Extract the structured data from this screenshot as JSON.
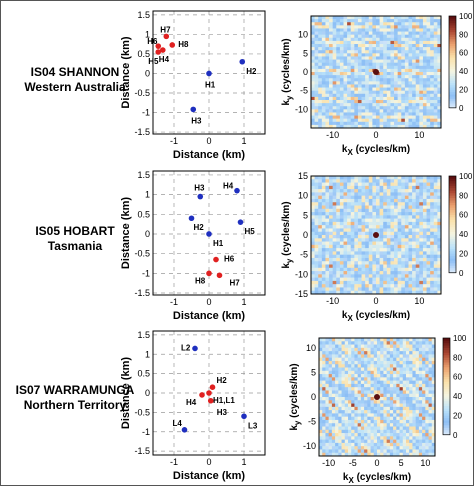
{
  "figure": {
    "stations": [
      {
        "name": "IS04 SHANNON",
        "region": "Western Australia"
      },
      {
        "name": "IS05 HOBART",
        "region": "Tasmania"
      },
      {
        "name": "IS07 WARRAMUNGA",
        "region": "Northern Territory"
      }
    ]
  },
  "chart_data": [
    {
      "type": "scatter",
      "panel": "IS04 SHANNON array layout",
      "xlabel": "Distance (km)",
      "ylabel": "Distance (km)",
      "xlim": [
        -1.6,
        1.6
      ],
      "ylim": [
        -1.55,
        1.6
      ],
      "xticks": [
        -1,
        0,
        1
      ],
      "yticks": [
        -1.5,
        -1,
        -0.5,
        0,
        0.5,
        1,
        1.5
      ],
      "grid": "dashed",
      "points": [
        {
          "label": "H1",
          "x": 0.0,
          "y": 0.0,
          "color": "#1f2fbf"
        },
        {
          "label": "H2",
          "x": 0.95,
          "y": 0.3,
          "color": "#1f2fbf"
        },
        {
          "label": "H3",
          "x": -0.45,
          "y": -0.92,
          "color": "#1f2fbf"
        },
        {
          "label": "H4",
          "x": -1.32,
          "y": 0.6,
          "color": "#e02020"
        },
        {
          "label": "H5",
          "x": -1.45,
          "y": 0.55,
          "color": "#e02020"
        },
        {
          "label": "H6",
          "x": -1.45,
          "y": 0.7,
          "color": "#e02020"
        },
        {
          "label": "H7",
          "x": -1.22,
          "y": 0.95,
          "color": "#e02020"
        },
        {
          "label": "H8",
          "x": -1.05,
          "y": 0.73,
          "color": "#e02020"
        }
      ]
    },
    {
      "type": "heatmap",
      "panel": "IS04 SHANNON array response",
      "xlabel": "kX (cycles/km)",
      "ylabel": "ky (cycles/km)",
      "xlim": [
        -15,
        15
      ],
      "ylim": [
        -15,
        15
      ],
      "xticks": [
        -10,
        0,
        10
      ],
      "yticks": [
        -10,
        -5,
        0,
        5,
        10
      ],
      "colorbar": [
        0,
        100
      ],
      "colorbar_ticks": [
        0,
        20,
        40,
        60,
        80,
        100
      ],
      "peak": {
        "x": 0,
        "y": 0,
        "value": 100
      }
    },
    {
      "type": "scatter",
      "panel": "IS05 HOBART array layout",
      "xlabel": "Distance (km)",
      "ylabel": "Distance (km)",
      "xlim": [
        -1.6,
        1.6
      ],
      "ylim": [
        -1.55,
        1.6
      ],
      "xticks": [
        -1,
        0,
        1
      ],
      "yticks": [
        -1.5,
        -1,
        -0.5,
        0,
        0.5,
        1,
        1.5
      ],
      "grid": "dashed",
      "points": [
        {
          "label": "H1",
          "x": 0.0,
          "y": 0.0,
          "color": "#1f2fbf"
        },
        {
          "label": "H2",
          "x": -0.5,
          "y": 0.4,
          "color": "#1f2fbf"
        },
        {
          "label": "H3",
          "x": -0.25,
          "y": 0.95,
          "color": "#1f2fbf"
        },
        {
          "label": "H4",
          "x": 0.8,
          "y": 1.1,
          "color": "#1f2fbf"
        },
        {
          "label": "H5",
          "x": 0.9,
          "y": 0.3,
          "color": "#1f2fbf"
        },
        {
          "label": "H6",
          "x": 0.2,
          "y": -0.65,
          "color": "#e02020"
        },
        {
          "label": "H7",
          "x": 0.3,
          "y": -1.05,
          "color": "#e02020"
        },
        {
          "label": "H8",
          "x": 0.0,
          "y": -1.0,
          "color": "#e02020"
        }
      ]
    },
    {
      "type": "heatmap",
      "panel": "IS05 HOBART array response",
      "xlabel": "kX (cycles/km)",
      "ylabel": "ky (cycles/km)",
      "xlim": [
        -15,
        15
      ],
      "ylim": [
        -15,
        15
      ],
      "xticks": [
        -10,
        0,
        10
      ],
      "yticks": [
        -15,
        -10,
        -5,
        0,
        5,
        10,
        15
      ],
      "colorbar": [
        0,
        100
      ],
      "colorbar_ticks": [
        0,
        20,
        40,
        60,
        80,
        100
      ],
      "peak": {
        "x": 0,
        "y": 0,
        "value": 100
      }
    },
    {
      "type": "scatter",
      "panel": "IS07 WARRAMUNGA array layout",
      "xlabel": "Distance (km)",
      "ylabel": "Distance (km)",
      "xlim": [
        -1.6,
        1.6
      ],
      "ylim": [
        -1.6,
        1.6
      ],
      "xticks": [
        -1,
        0,
        1
      ],
      "yticks": [
        -1.5,
        -1,
        -0.5,
        0,
        0.5,
        1,
        1.5
      ],
      "grid": "dashed",
      "points": [
        {
          "label": "L2",
          "x": -0.4,
          "y": 1.15,
          "color": "#1f2fbf"
        },
        {
          "label": "H2",
          "x": 0.1,
          "y": 0.15,
          "color": "#e02020"
        },
        {
          "label": "H4",
          "x": -0.2,
          "y": -0.05,
          "color": "#e02020"
        },
        {
          "label": "H1,L1",
          "x": 0.0,
          "y": 0.0,
          "color": "#e02020"
        },
        {
          "label": "H3",
          "x": 0.05,
          "y": -0.2,
          "color": "#e02020"
        },
        {
          "label": "L3",
          "x": 1.0,
          "y": -0.6,
          "color": "#1f2fbf"
        },
        {
          "label": "L4",
          "x": -0.7,
          "y": -0.95,
          "color": "#1f2fbf"
        }
      ]
    },
    {
      "type": "heatmap",
      "panel": "IS07 WARRAMUNGA array response",
      "xlabel": "kX (cycles/km)",
      "ylabel": "ky (cycles/km)",
      "xlim": [
        -12,
        12
      ],
      "ylim": [
        -12,
        12
      ],
      "xticks": [
        -10,
        -5,
        0,
        5,
        10
      ],
      "yticks": [
        -10,
        -5,
        0,
        5,
        10
      ],
      "colorbar": [
        0,
        100
      ],
      "colorbar_ticks": [
        0,
        20,
        40,
        60,
        80,
        100
      ],
      "peak": {
        "x": 0,
        "y": 0,
        "value": 100
      }
    }
  ]
}
